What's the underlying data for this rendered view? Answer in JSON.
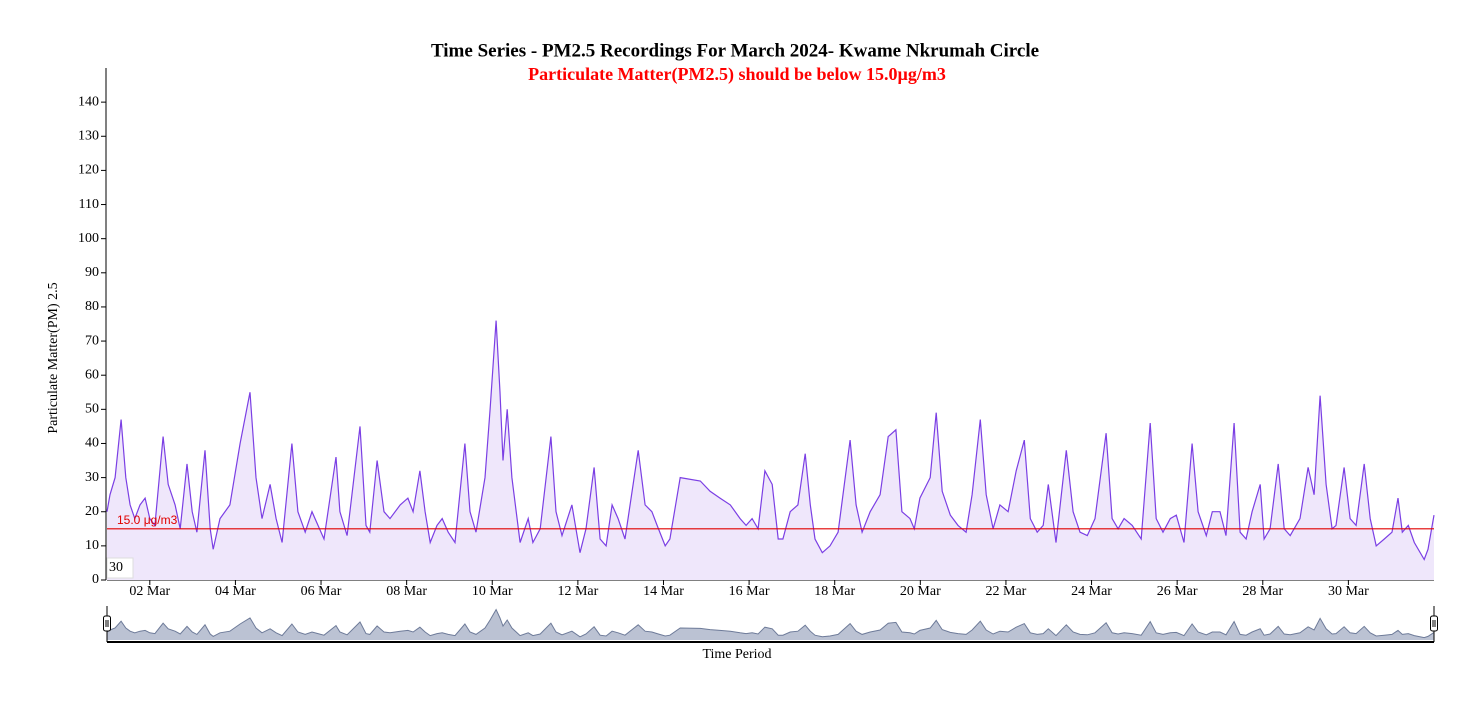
{
  "chart_data": {
    "type": "area",
    "title": "Time Series - PM2.5 Recordings For March 2024- Kwame Nkrumah Circle",
    "subtitle": "Particulate Matter(PM2.5) should be below 15.0µg/m3",
    "subtitle_color": "#ff0000",
    "x_label": "Time Period",
    "y_label": "Particulate Matter(PM) 2.5",
    "color": "#7b3fe4",
    "fill": "#efe7fb",
    "navigator_color": "#6e7b99",
    "navigator_fill": "#aab3c8",
    "zoom_label": "30",
    "threshold": {
      "value": 15,
      "label": "15.0 μg/m3",
      "color": "#e00000"
    },
    "xlim": [
      1,
      32
    ],
    "xticks": [
      {
        "value": 2,
        "label": "02 Mar"
      },
      {
        "value": 4,
        "label": "04 Mar"
      },
      {
        "value": 6,
        "label": "06 Mar"
      },
      {
        "value": 8,
        "label": "08 Mar"
      },
      {
        "value": 10,
        "label": "10 Mar"
      },
      {
        "value": 12,
        "label": "12 Mar"
      },
      {
        "value": 14,
        "label": "14 Mar"
      },
      {
        "value": 16,
        "label": "16 Mar"
      },
      {
        "value": 18,
        "label": "18 Mar"
      },
      {
        "value": 20,
        "label": "20 Mar"
      },
      {
        "value": 22,
        "label": "22 Mar"
      },
      {
        "value": 24,
        "label": "24 Mar"
      },
      {
        "value": 26,
        "label": "26 Mar"
      },
      {
        "value": 28,
        "label": "28 Mar"
      },
      {
        "value": 30,
        "label": "30 Mar"
      }
    ],
    "ylim": [
      0,
      150
    ],
    "yticks": [
      0,
      10,
      20,
      30,
      40,
      50,
      60,
      70,
      80,
      90,
      100,
      110,
      120,
      130,
      140
    ],
    "x": [
      1.0,
      1.07,
      1.19,
      1.33,
      1.44,
      1.54,
      1.65,
      1.77,
      1.89,
      2.0,
      2.12,
      2.31,
      2.43,
      2.59,
      2.71,
      2.87,
      2.99,
      3.1,
      3.29,
      3.41,
      3.48,
      3.64,
      3.87,
      4.11,
      4.34,
      4.48,
      4.62,
      4.81,
      4.95,
      5.09,
      5.32,
      5.46,
      5.63,
      5.79,
      5.93,
      6.07,
      6.35,
      6.44,
      6.61,
      6.91,
      7.05,
      7.14,
      7.31,
      7.47,
      7.61,
      7.85,
      8.03,
      8.15,
      8.31,
      8.43,
      8.55,
      8.71,
      8.83,
      8.97,
      9.13,
      9.36,
      9.48,
      9.62,
      9.83,
      9.95,
      10.09,
      10.18,
      10.25,
      10.35,
      10.46,
      10.65,
      10.84,
      10.95,
      11.12,
      11.37,
      11.49,
      11.63,
      11.86,
      12.05,
      12.19,
      12.38,
      12.52,
      12.66,
      12.8,
      12.94,
      13.1,
      13.41,
      13.57,
      13.73,
      13.85,
      14.04,
      14.15,
      14.39,
      14.86,
      15.09,
      15.32,
      15.56,
      15.79,
      15.93,
      16.07,
      16.21,
      16.37,
      16.54,
      16.68,
      16.79,
      16.96,
      17.14,
      17.31,
      17.43,
      17.54,
      17.71,
      17.89,
      18.08,
      18.36,
      18.5,
      18.64,
      18.83,
      19.06,
      19.25,
      19.43,
      19.57,
      19.76,
      19.86,
      19.99,
      20.23,
      20.37,
      20.51,
      20.7,
      20.88,
      21.07,
      21.21,
      21.4,
      21.54,
      21.7,
      21.86,
      22.05,
      22.24,
      22.43,
      22.57,
      22.73,
      22.87,
      22.99,
      23.17,
      23.41,
      23.57,
      23.73,
      23.9,
      24.08,
      24.34,
      24.48,
      24.62,
      24.76,
      24.95,
      25.16,
      25.37,
      25.51,
      25.67,
      25.84,
      25.98,
      26.16,
      26.35,
      26.49,
      26.68,
      26.82,
      27.0,
      27.14,
      27.33,
      27.47,
      27.61,
      27.75,
      27.94,
      28.03,
      28.17,
      28.36,
      28.5,
      28.64,
      28.87,
      29.06,
      29.2,
      29.34,
      29.48,
      29.62,
      29.71,
      29.9,
      30.04,
      30.18,
      30.37,
      30.51,
      30.65,
      30.84,
      31.02,
      31.16,
      31.26,
      31.4,
      31.54,
      31.77,
      31.86,
      32.0
    ],
    "values": [
      20,
      25,
      30,
      47,
      30,
      22,
      18,
      22,
      24,
      18,
      16,
      42,
      28,
      22,
      15,
      34,
      20,
      14,
      38,
      15,
      9,
      18,
      22,
      40,
      55,
      30,
      18,
      28,
      18,
      11,
      40,
      20,
      14,
      20,
      16,
      12,
      36,
      20,
      13,
      45,
      16,
      14,
      35,
      20,
      18,
      22,
      24,
      20,
      32,
      20,
      11,
      16,
      18,
      14,
      11,
      40,
      20,
      14,
      30,
      50,
      76,
      55,
      35,
      50,
      30,
      11,
      18,
      11,
      15,
      42,
      20,
      13,
      22,
      8,
      15,
      33,
      12,
      10,
      22,
      18,
      12,
      38,
      22,
      20,
      16,
      10,
      12,
      30,
      29,
      26,
      24,
      22,
      18,
      16,
      18,
      15,
      32,
      28,
      12,
      12,
      20,
      22,
      37,
      22,
      12,
      8,
      10,
      14,
      41,
      22,
      14,
      20,
      25,
      42,
      44,
      20,
      18,
      15,
      24,
      30,
      49,
      26,
      19,
      16,
      14,
      25,
      47,
      25,
      15,
      22,
      20,
      32,
      41,
      18,
      14,
      16,
      28,
      11,
      38,
      20,
      14,
      13,
      18,
      43,
      18,
      15,
      18,
      16,
      12,
      46,
      18,
      14,
      18,
      19,
      11,
      40,
      20,
      13,
      20,
      20,
      13,
      46,
      14,
      12,
      20,
      28,
      12,
      15,
      34,
      15,
      13,
      18,
      33,
      25,
      54,
      28,
      15,
      16,
      33,
      18,
      16,
      34,
      18,
      10,
      12,
      14,
      24,
      14,
      16,
      11,
      6,
      9,
      19
    ]
  }
}
